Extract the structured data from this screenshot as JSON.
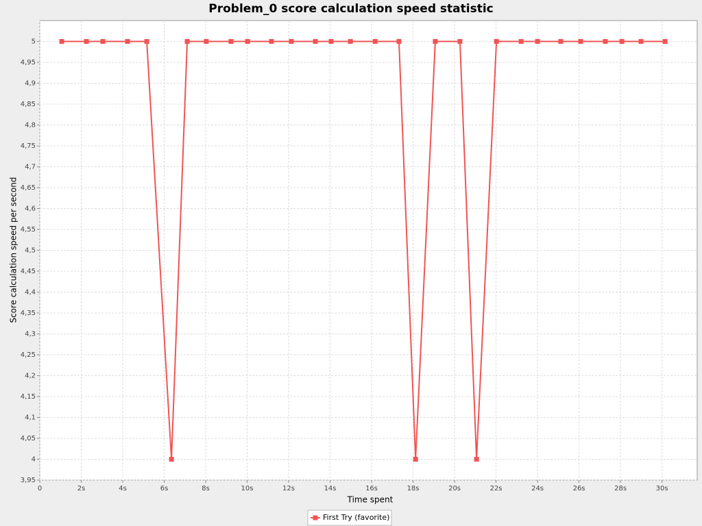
{
  "chart_data": {
    "type": "line",
    "title": "Problem_0 score calculation speed statistic",
    "x_label": "Time spent",
    "y_label": "Score calculation speed per second",
    "xlim": [
      0,
      31.7
    ],
    "ylim": [
      3.95,
      5.05
    ],
    "grid": true,
    "legend": "bottom",
    "xticks": [
      0,
      {
        "value": 2,
        "label": "2s"
      },
      {
        "value": 4,
        "label": "4s"
      },
      {
        "value": 6,
        "label": "6s"
      },
      {
        "value": 8,
        "label": "8s"
      },
      {
        "value": 10,
        "label": "10s"
      },
      {
        "value": 12,
        "label": "12s"
      },
      {
        "value": 14,
        "label": "14s"
      },
      {
        "value": 16,
        "label": "16s"
      },
      {
        "value": 18,
        "label": "18s"
      },
      {
        "value": 20,
        "label": "20s"
      },
      {
        "value": 22,
        "label": "22s"
      },
      {
        "value": 24,
        "label": "24s"
      },
      {
        "value": 26,
        "label": "26s"
      },
      {
        "value": 28,
        "label": "28s"
      },
      {
        "value": 30,
        "label": "30s"
      }
    ],
    "yticks": [
      {
        "value": 3.95,
        "label": "3,95"
      },
      4,
      {
        "value": 4.05,
        "label": "4,05"
      },
      {
        "value": 4.1,
        "label": "4,1"
      },
      {
        "value": 4.15,
        "label": "4,15"
      },
      {
        "value": 4.2,
        "label": "4,2"
      },
      {
        "value": 4.25,
        "label": "4,25"
      },
      {
        "value": 4.3,
        "label": "4,3"
      },
      {
        "value": 4.35,
        "label": "4,35"
      },
      {
        "value": 4.4,
        "label": "4,4"
      },
      {
        "value": 4.45,
        "label": "4,45"
      },
      {
        "value": 4.5,
        "label": "4,5"
      },
      {
        "value": 4.55,
        "label": "4,55"
      },
      {
        "value": 4.6,
        "label": "4,6"
      },
      {
        "value": 4.65,
        "label": "4,65"
      },
      {
        "value": 4.7,
        "label": "4,7"
      },
      {
        "value": 4.75,
        "label": "4,75"
      },
      {
        "value": 4.8,
        "label": "4,8"
      },
      {
        "value": 4.85,
        "label": "4,85"
      },
      {
        "value": 4.9,
        "label": "4,9"
      },
      {
        "value": 4.95,
        "label": "4,95"
      },
      5
    ],
    "x": [
      1.06,
      2.25,
      3.04,
      4.23,
      5.16,
      6.35,
      7.11,
      8.03,
      9.22,
      10.02,
      11.17,
      12.13,
      13.29,
      14.05,
      14.98,
      16.17,
      17.32,
      18.12,
      19.07,
      20.26,
      21.06,
      22.02,
      23.21,
      24.0,
      25.12,
      26.08,
      27.27,
      28.07,
      28.99,
      30.15
    ],
    "series": [
      {
        "name": "First Try (favorite)",
        "color": "#f05454",
        "values": [
          5,
          5,
          5,
          5,
          5,
          4,
          5,
          5,
          5,
          5,
          5,
          5,
          5,
          5,
          5,
          5,
          5,
          4,
          5,
          5,
          4,
          5,
          5,
          5,
          5,
          5,
          5,
          5,
          5,
          5
        ]
      }
    ]
  }
}
